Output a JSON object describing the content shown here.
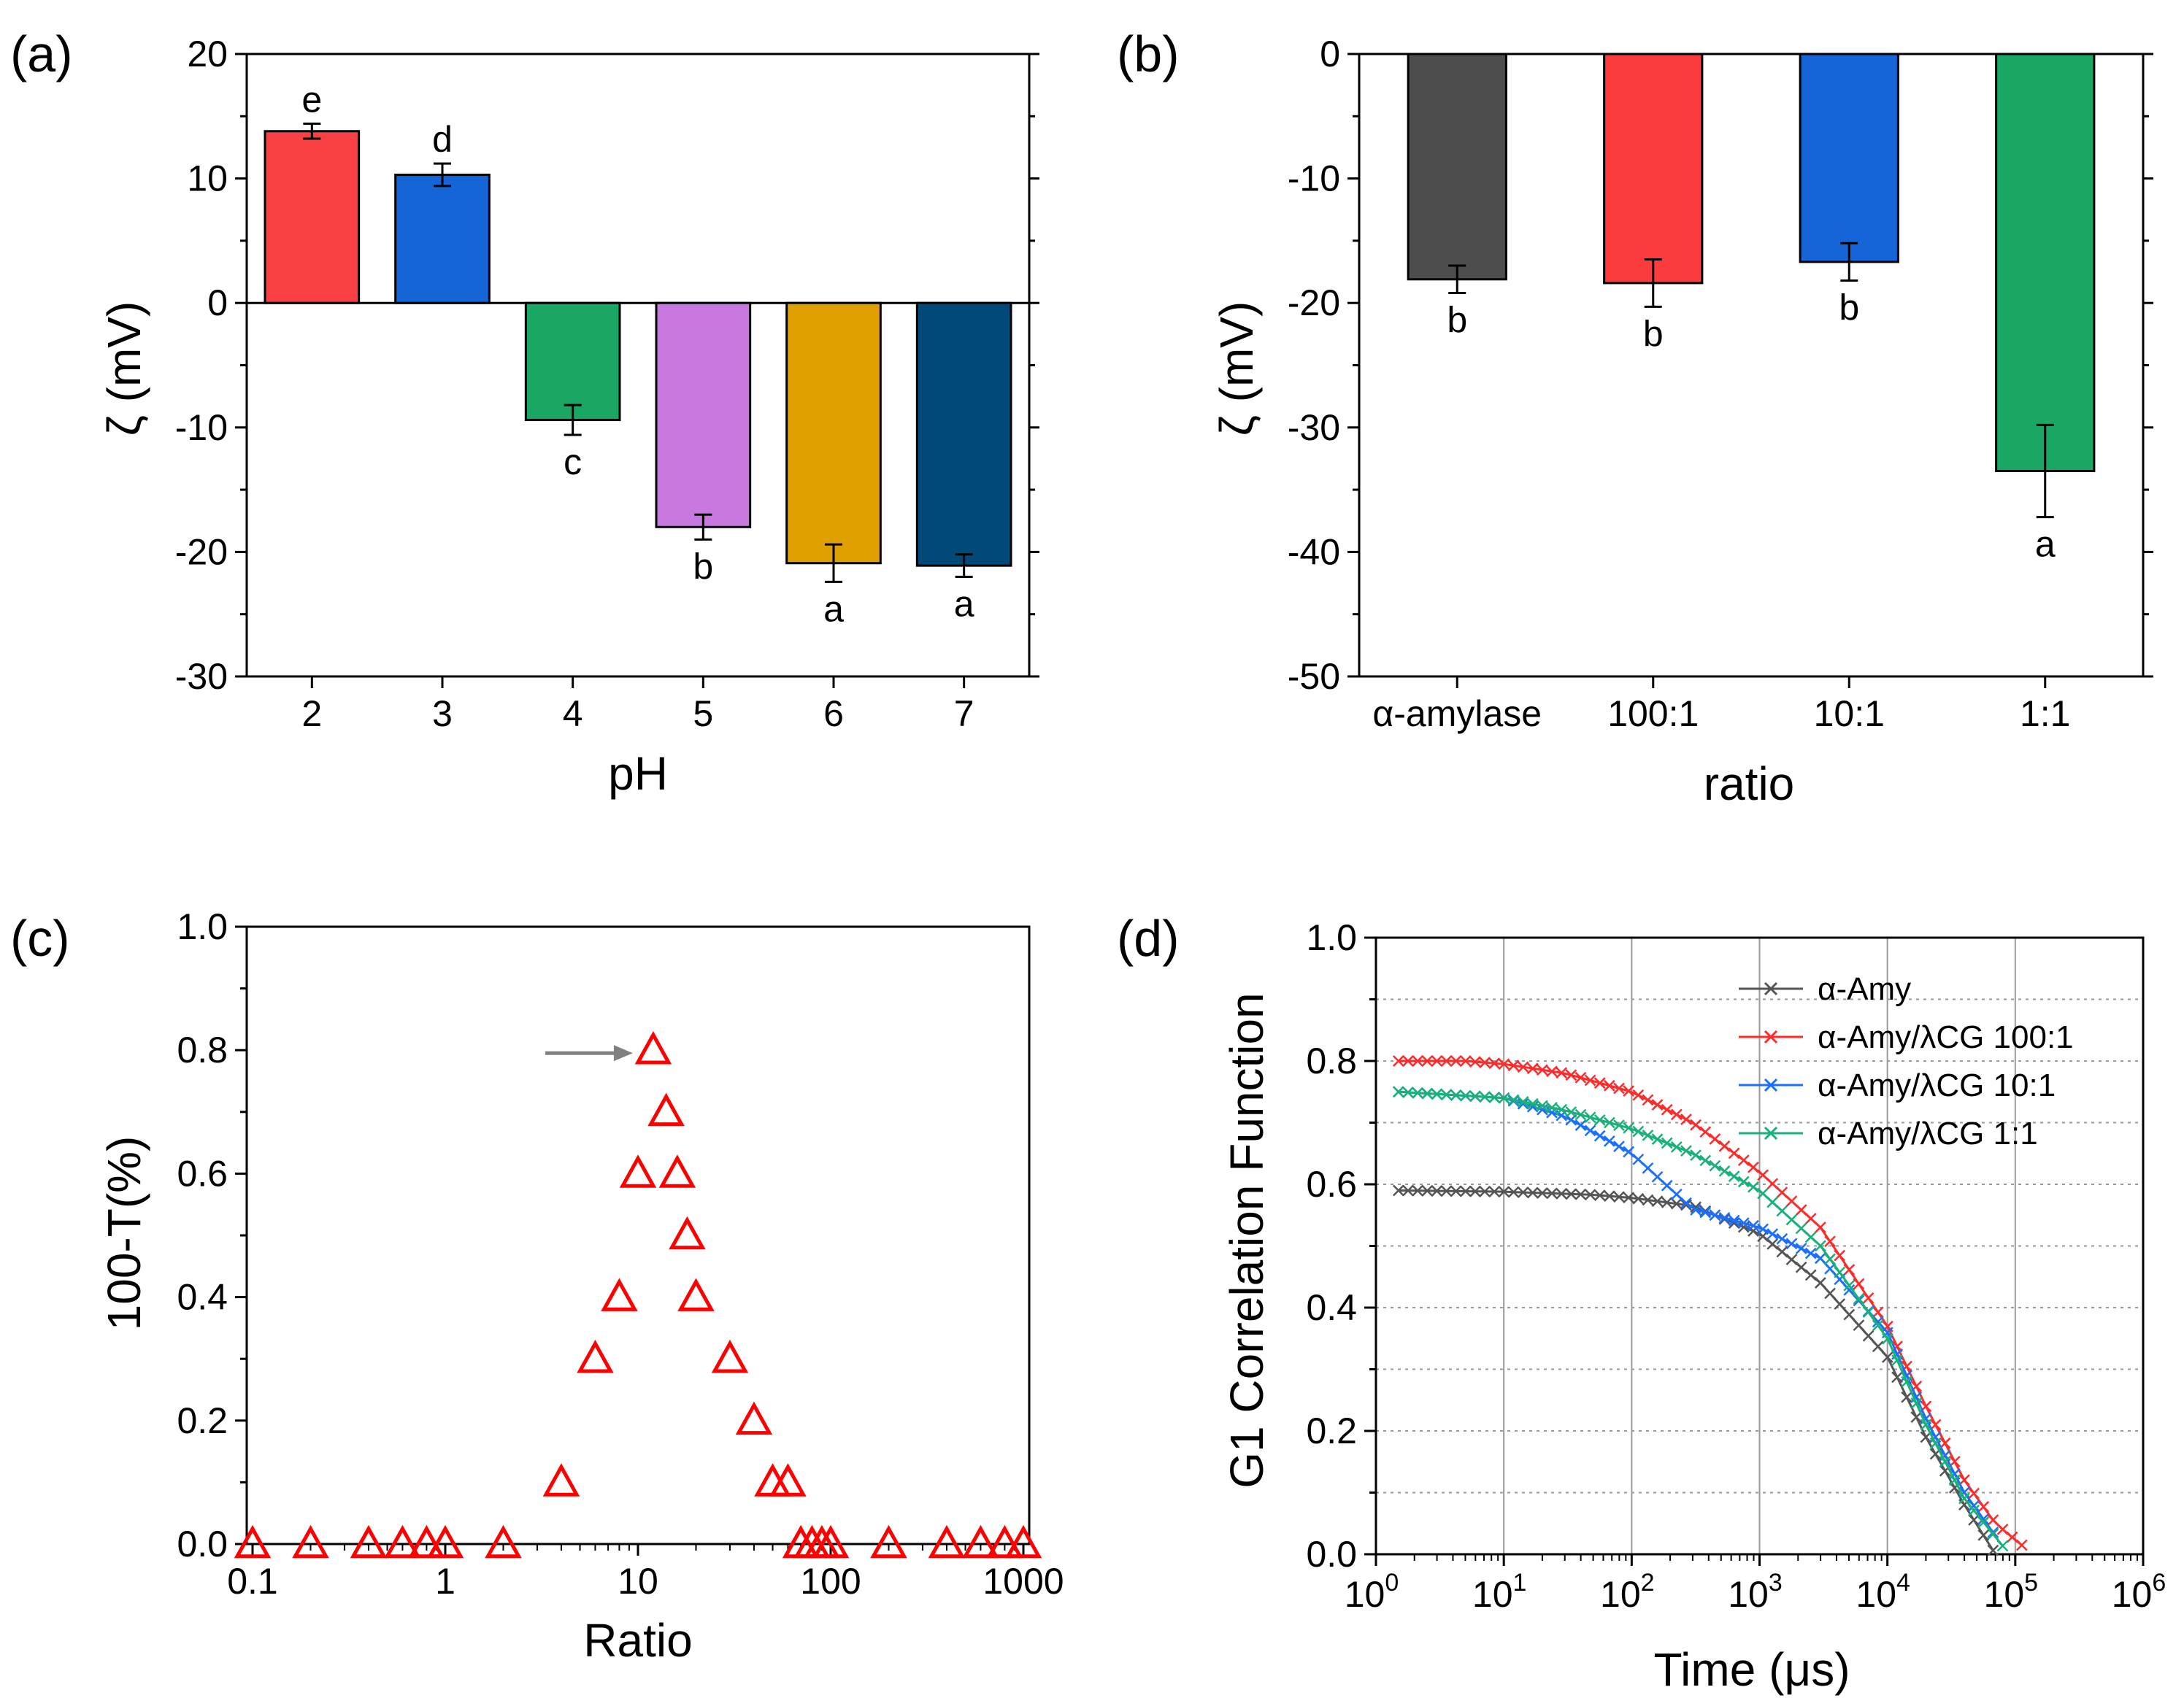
{
  "chart_data": [
    {
      "panel": "(a)",
      "type": "bar",
      "xlabel": "pH",
      "ylabel": "ζ (mV)",
      "ylim": [
        -30,
        20
      ],
      "yticks": [
        "-30",
        "-20",
        "-10",
        "0",
        "10",
        "20"
      ],
      "categories": [
        "2",
        "3",
        "4",
        "5",
        "6",
        "7"
      ],
      "values": [
        13.8,
        10.3,
        -9.4,
        -18.0,
        -20.9,
        -21.1
      ],
      "errors": [
        0.6,
        0.9,
        1.2,
        1.0,
        1.5,
        0.9
      ],
      "significance": [
        "e",
        "d",
        "c",
        "b",
        "a",
        "a"
      ],
      "colors": [
        "#f94144",
        "#1565d8",
        "#1aa663",
        "#c879e0",
        "#e0a000",
        "#004a7a"
      ]
    },
    {
      "panel": "(b)",
      "type": "bar",
      "xlabel": "ratio",
      "ylabel": "ζ (mV)",
      "ylim": [
        -50,
        0
      ],
      "yticks": [
        "-50",
        "-40",
        "-30",
        "-20",
        "-10",
        "0"
      ],
      "categories": [
        "α-amylase",
        "100:1",
        "10:1",
        "1:1"
      ],
      "values": [
        -18.1,
        -18.4,
        -16.7,
        -33.5
      ],
      "errors": [
        1.1,
        1.9,
        1.5,
        3.7
      ],
      "significance": [
        "b",
        "b",
        "b",
        "a"
      ],
      "colors": [
        "#4d4d4d",
        "#fa3c3c",
        "#1565d8",
        "#1aa663"
      ]
    },
    {
      "panel": "(c)",
      "type": "scatter",
      "xlabel": "Ratio",
      "ylabel": "100-T(%)",
      "xscale": "log",
      "xlim": [
        0.1,
        1000
      ],
      "ylim": [
        0,
        1
      ],
      "xticks": [
        "0.1",
        "1",
        "10",
        "100",
        "1000"
      ],
      "yticks": [
        "0.0",
        "0.2",
        "0.4",
        "0.6",
        "0.8",
        "1.0"
      ],
      "marker": "open-triangle",
      "color": "#ff0000",
      "annotation": "arrow pointing to the maximum at ratio ≈ 12",
      "x": [
        0.1,
        0.2,
        0.4,
        0.6,
        0.8,
        1,
        2,
        4,
        6,
        8,
        10,
        12,
        14,
        16,
        18,
        20,
        30,
        40,
        50,
        60,
        70,
        80,
        90,
        100,
        200,
        400,
        600,
        800,
        1000
      ],
      "y": [
        0,
        0,
        0,
        0,
        0,
        0,
        0,
        0.1,
        0.3,
        0.4,
        0.6,
        0.8,
        0.7,
        0.6,
        0.5,
        0.4,
        0.3,
        0.2,
        0.1,
        0.1,
        0,
        0,
        0,
        0,
        0,
        0,
        0,
        0,
        0
      ]
    },
    {
      "panel": "(d)",
      "type": "line",
      "xlabel": "Time (μs)",
      "ylabel": "G1 Correlation Function",
      "xscale": "log",
      "xlim": [
        1,
        1000000
      ],
      "ylim": [
        0,
        1
      ],
      "xtick_base": "10",
      "xtick_exponents": [
        "0",
        "1",
        "2",
        "3",
        "4",
        "5",
        "6"
      ],
      "yticks": [
        "0.0",
        "0.2",
        "0.4",
        "0.6",
        "0.8",
        "1.0"
      ],
      "grid": true,
      "legend_position": "top-right",
      "series": [
        {
          "name": "α-Amy",
          "color": "#555555",
          "points": [
            [
              1.5,
              0.59
            ],
            [
              10,
              0.588
            ],
            [
              50,
              0.583
            ],
            [
              100,
              0.578
            ],
            [
              300,
              0.565
            ],
            [
              1000,
              0.52
            ],
            [
              3000,
              0.44
            ],
            [
              10000,
              0.32
            ],
            [
              20000,
              0.19
            ],
            [
              40000,
              0.08
            ],
            [
              70000,
              0.0
            ]
          ]
        },
        {
          "name": "α-Amy/λCG 100:1",
          "color": "#ff2a2a",
          "points": [
            [
              1.5,
              0.8
            ],
            [
              5,
              0.8
            ],
            [
              10,
              0.795
            ],
            [
              30,
              0.78
            ],
            [
              100,
              0.75
            ],
            [
              300,
              0.7
            ],
            [
              1000,
              0.62
            ],
            [
              3000,
              0.53
            ],
            [
              10000,
              0.37
            ],
            [
              20000,
              0.24
            ],
            [
              40000,
              0.12
            ],
            [
              70000,
              0.05
            ],
            [
              120000,
              0.01
            ]
          ]
        },
        {
          "name": "α-Amy/λCG 10:1",
          "color": "#1a6fff",
          "points": [
            [
              1.5,
              0.75
            ],
            [
              10,
              0.74
            ],
            [
              30,
              0.71
            ],
            [
              100,
              0.65
            ],
            [
              300,
              0.56
            ],
            [
              1000,
              0.53
            ],
            [
              3000,
              0.48
            ],
            [
              10000,
              0.36
            ],
            [
              20000,
              0.22
            ],
            [
              40000,
              0.1
            ],
            [
              70000,
              0.03
            ]
          ]
        },
        {
          "name": "α-Amy/λCG 1:1",
          "color": "#1ab07a",
          "points": [
            [
              1.5,
              0.75
            ],
            [
              10,
              0.74
            ],
            [
              30,
              0.72
            ],
            [
              100,
              0.69
            ],
            [
              300,
              0.65
            ],
            [
              1000,
              0.59
            ],
            [
              3000,
              0.5
            ],
            [
              10000,
              0.35
            ],
            [
              20000,
              0.21
            ],
            [
              40000,
              0.09
            ],
            [
              90000,
              0.0
            ]
          ]
        }
      ]
    }
  ]
}
